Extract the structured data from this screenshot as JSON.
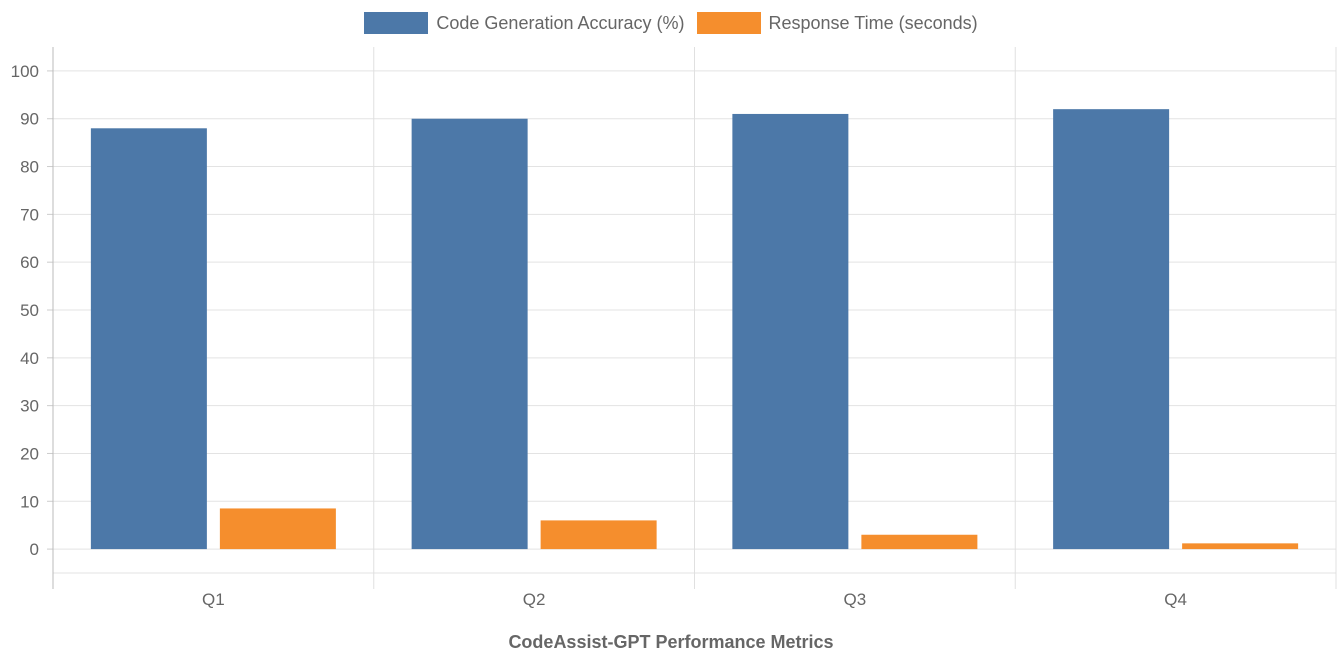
{
  "chart_data": {
    "type": "bar",
    "title": "CodeAssist-GPT Performance Metrics",
    "categories": [
      "Q1",
      "Q2",
      "Q3",
      "Q4"
    ],
    "series": [
      {
        "name": "Code Generation Accuracy (%)",
        "values": [
          88,
          90,
          91,
          92
        ],
        "color": "#4c78a8"
      },
      {
        "name": "Response Time (seconds)",
        "values": [
          8.5,
          6,
          3,
          1.2
        ],
        "color": "#f58e2d"
      }
    ],
    "ylim": [
      -5,
      105
    ],
    "yticks": [
      "0",
      "10",
      "20",
      "30",
      "40",
      "50",
      "60",
      "70",
      "80",
      "90",
      "100"
    ],
    "grid": true,
    "legend_position": "top"
  }
}
